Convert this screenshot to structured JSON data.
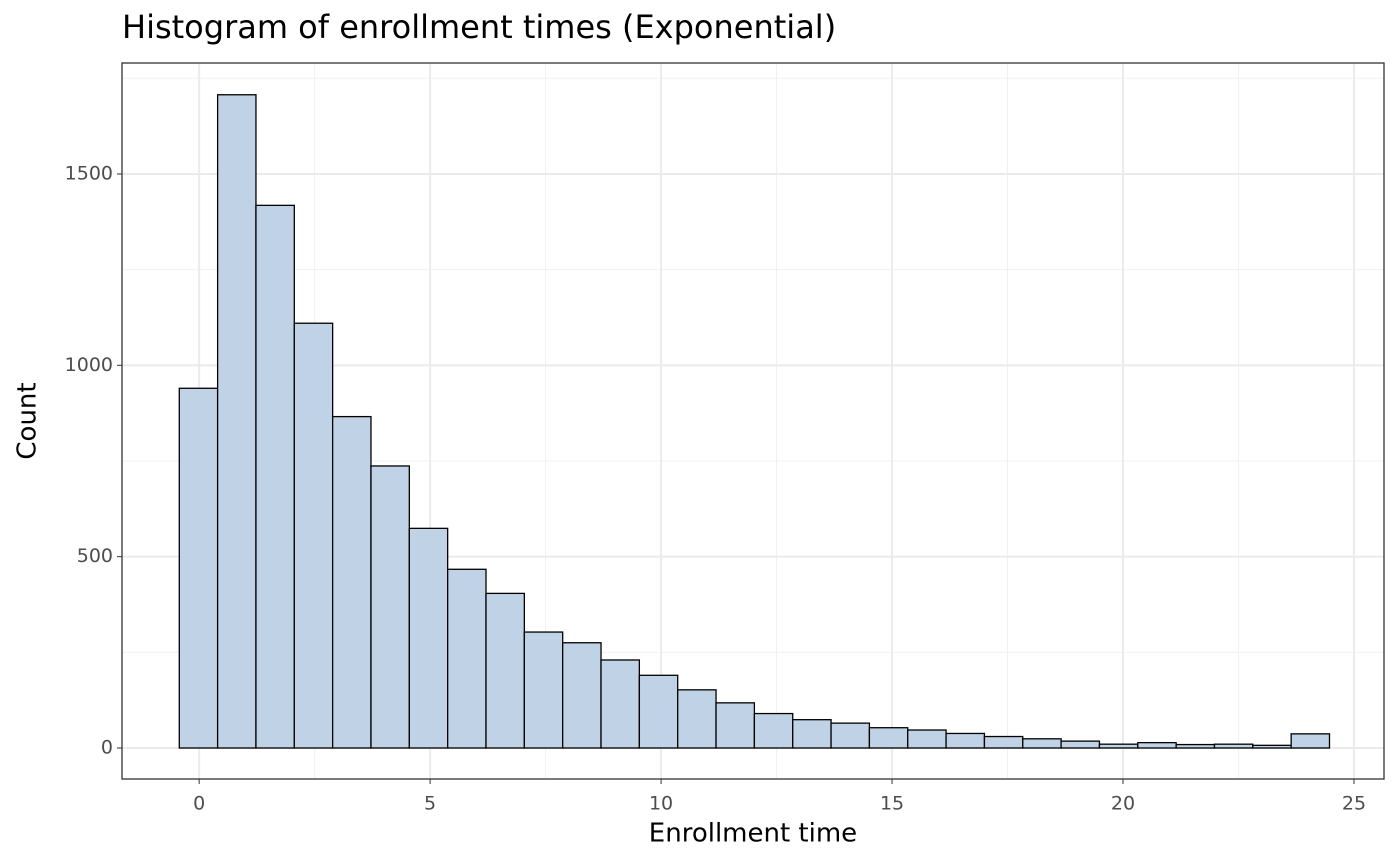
{
  "chart_data": {
    "type": "histogram",
    "title": "Histogram of enrollment times (Exponential)",
    "x_label": "Enrollment time",
    "y_label": "Count",
    "bins": [
      -0.43,
      0.4,
      1.23,
      2.06,
      2.89,
      3.72,
      4.55,
      5.38,
      6.21,
      7.04,
      7.87,
      8.7,
      9.53,
      10.36,
      11.19,
      12.02,
      12.85,
      13.68,
      14.51,
      15.34,
      16.17,
      17.0,
      17.83,
      18.66,
      19.49,
      20.32,
      21.15,
      21.98,
      22.81,
      23.64,
      24.47
    ],
    "values": [
      940,
      1707,
      1418,
      1110,
      866,
      737,
      574,
      467,
      404,
      303,
      275,
      230,
      190,
      152,
      118,
      90,
      74,
      65,
      53,
      47,
      38,
      30,
      24,
      18,
      10,
      14,
      9,
      10,
      7,
      37
    ],
    "color": "#c0d3e6",
    "edgecolor": "#000000",
    "xlim": [
      -1.67,
      25.65
    ],
    "xticks": [
      0,
      5,
      10,
      15,
      20,
      25
    ],
    "ylim": [
      -81,
      1790
    ],
    "yticks": [
      0,
      500,
      1000,
      1500
    ],
    "grid": true,
    "minor_grid": true
  }
}
